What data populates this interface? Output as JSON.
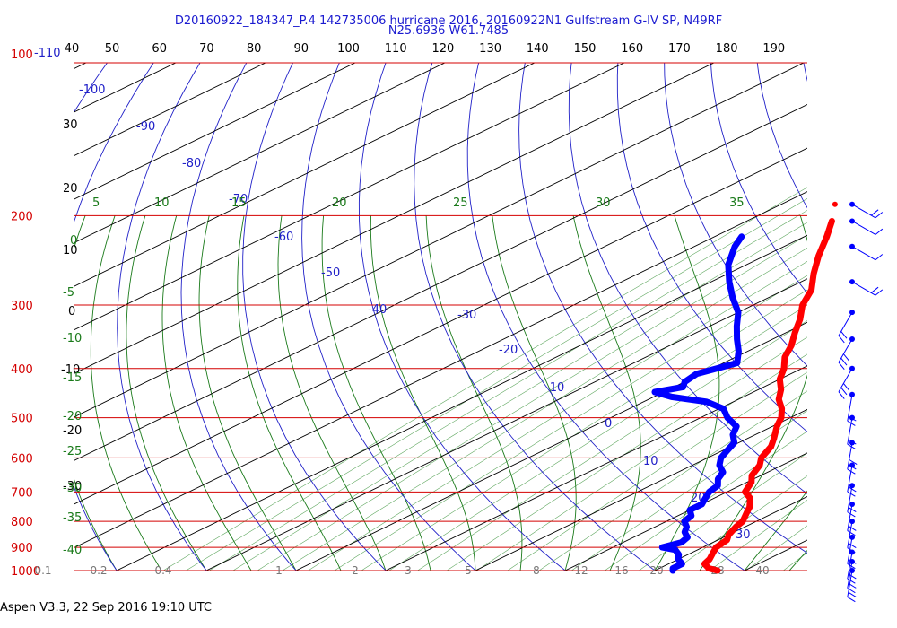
{
  "header": {
    "title_line1": "D20160922_184347_P.4 142735006 hurricane 2016, 20160922N1 Gulfstream G-IV SP, N49RF",
    "title_line2": "N25.6936 W61.7485"
  },
  "footer": {
    "text": "Aspen V3.3, 22 Sep 2016  19:10 UTC"
  },
  "colors": {
    "isobar": "#d40000",
    "isotherm": "#000000",
    "dry_adiabat": "#2020c8",
    "moist_adiabat": "#1a7a1a",
    "mixing_ratio": "#2a8a2a",
    "temperature_trace": "#ff0000",
    "dewpoint_trace": "#0000ff",
    "title": "#1a1ad0",
    "wind_barb": "#0000ff"
  },
  "chart_data": {
    "type": "skew-t",
    "xlim": [
      -40,
      50
    ],
    "ylim": [
      1000,
      100
    ],
    "pressure_levels": [
      "100",
      "200",
      "300",
      "400",
      "500",
      "600",
      "700",
      "800",
      "900",
      "1000"
    ],
    "top_left_label": "-110",
    "top_axis_labels": [
      "40",
      "50",
      "60",
      "70",
      "80",
      "90",
      "100",
      "110",
      "120",
      "130",
      "140",
      "150",
      "160",
      "170",
      "180",
      "190"
    ],
    "left_isotherm_labels": [
      "30",
      "20",
      "10",
      "0",
      "-10",
      "-20",
      "-30",
      "-40"
    ],
    "dry_adiabat_labels": [
      "-100",
      "-90",
      "-80",
      "-70",
      "-60",
      "-50",
      "-40",
      "-30",
      "-20",
      "-10",
      "0",
      "10",
      "20",
      "30"
    ],
    "moist_adiabat_top_labels": [
      "5",
      "10",
      "15",
      "20",
      "25",
      "30",
      "35"
    ],
    "moist_adiabat_left_labels": [
      "0",
      "-5",
      "-10",
      "-15",
      "-20",
      "-25",
      "-30",
      "-35",
      "-40"
    ],
    "mixing_ratio_labels": [
      "0.1",
      "0.2",
      "0.4",
      "1",
      "2",
      "3",
      "5",
      "8",
      "12",
      "16",
      "20",
      "28",
      "40"
    ],
    "temperature_trace": {
      "name": "Temperature",
      "points": [
        [
          1000,
          27
        ],
        [
          990,
          25.5
        ],
        [
          970,
          24
        ],
        [
          950,
          23.5
        ],
        [
          925,
          22.5
        ],
        [
          900,
          21.5
        ],
        [
          870,
          21
        ],
        [
          850,
          20
        ],
        [
          820,
          19
        ],
        [
          800,
          18.5
        ],
        [
          770,
          17
        ],
        [
          750,
          16
        ],
        [
          720,
          14
        ],
        [
          700,
          12
        ],
        [
          670,
          10.5
        ],
        [
          650,
          9
        ],
        [
          620,
          7.5
        ],
        [
          600,
          6
        ],
        [
          570,
          4.5
        ],
        [
          550,
          3
        ],
        [
          520,
          0.5
        ],
        [
          500,
          -1
        ],
        [
          480,
          -3
        ],
        [
          460,
          -5.5
        ],
        [
          440,
          -7.5
        ],
        [
          420,
          -10
        ],
        [
          400,
          -12
        ],
        [
          380,
          -14.5
        ],
        [
          360,
          -16.5
        ],
        [
          340,
          -19
        ],
        [
          320,
          -21.5
        ],
        [
          300,
          -24.5
        ],
        [
          280,
          -27
        ],
        [
          260,
          -30.5
        ],
        [
          240,
          -34
        ],
        [
          220,
          -37.5
        ],
        [
          205,
          -40.5
        ]
      ]
    },
    "temperature_isolated_point": [
      190,
      -44
    ],
    "dewpoint_trace": {
      "name": "Dewpoint",
      "points": [
        [
          1000,
          22
        ],
        [
          990,
          21.5
        ],
        [
          970,
          21.5
        ],
        [
          950,
          20
        ],
        [
          930,
          19
        ],
        [
          910,
          17.5
        ],
        [
          900,
          15.5
        ],
        [
          880,
          16.5
        ],
        [
          860,
          16
        ],
        [
          840,
          14.5
        ],
        [
          820,
          13.5
        ],
        [
          800,
          12
        ],
        [
          780,
          11.5
        ],
        [
          760,
          10
        ],
        [
          740,
          10
        ],
        [
          720,
          9
        ],
        [
          700,
          8
        ],
        [
          680,
          7.5
        ],
        [
          660,
          6
        ],
        [
          640,
          5
        ],
        [
          620,
          3
        ],
        [
          600,
          1.5
        ],
        [
          580,
          0.5
        ],
        [
          560,
          -0.5
        ],
        [
          540,
          -2.5
        ],
        [
          520,
          -4
        ],
        [
          500,
          -7
        ],
        [
          480,
          -9.5
        ],
        [
          465,
          -13
        ],
        [
          455,
          -18
        ],
        [
          445,
          -21
        ],
        [
          435,
          -19
        ],
        [
          425,
          -20
        ],
        [
          410,
          -20.5
        ],
        [
          400,
          -19.5
        ],
        [
          390,
          -18.5
        ],
        [
          370,
          -21
        ],
        [
          350,
          -24
        ],
        [
          330,
          -27
        ],
        [
          310,
          -30
        ],
        [
          290,
          -34
        ],
        [
          270,
          -38
        ],
        [
          250,
          -42
        ],
        [
          230,
          -45.5
        ],
        [
          220,
          -47
        ]
      ]
    },
    "wind_barbs": [
      {
        "pressure": 190,
        "wind_kt": 15
      },
      {
        "pressure": 205,
        "wind_kt": 10
      },
      {
        "pressure": 230,
        "wind_kt": 10
      },
      {
        "pressure": 270,
        "wind_kt": 15
      },
      {
        "pressure": 310,
        "wind_kt": 20
      },
      {
        "pressure": 350,
        "wind_kt": 25
      },
      {
        "pressure": 400,
        "wind_kt": 25
      },
      {
        "pressure": 450,
        "wind_kt": 20
      },
      {
        "pressure": 500,
        "wind_kt": 20
      },
      {
        "pressure": 560,
        "wind_kt": 25
      },
      {
        "pressure": 620,
        "wind_kt": 20
      },
      {
        "pressure": 680,
        "wind_kt": 20
      },
      {
        "pressure": 740,
        "wind_kt": 20
      },
      {
        "pressure": 800,
        "wind_kt": 20
      },
      {
        "pressure": 860,
        "wind_kt": 20
      },
      {
        "pressure": 920,
        "wind_kt": 15
      },
      {
        "pressure": 960,
        "wind_kt": 15
      },
      {
        "pressure": 1000,
        "wind_kt": 15
      }
    ]
  }
}
